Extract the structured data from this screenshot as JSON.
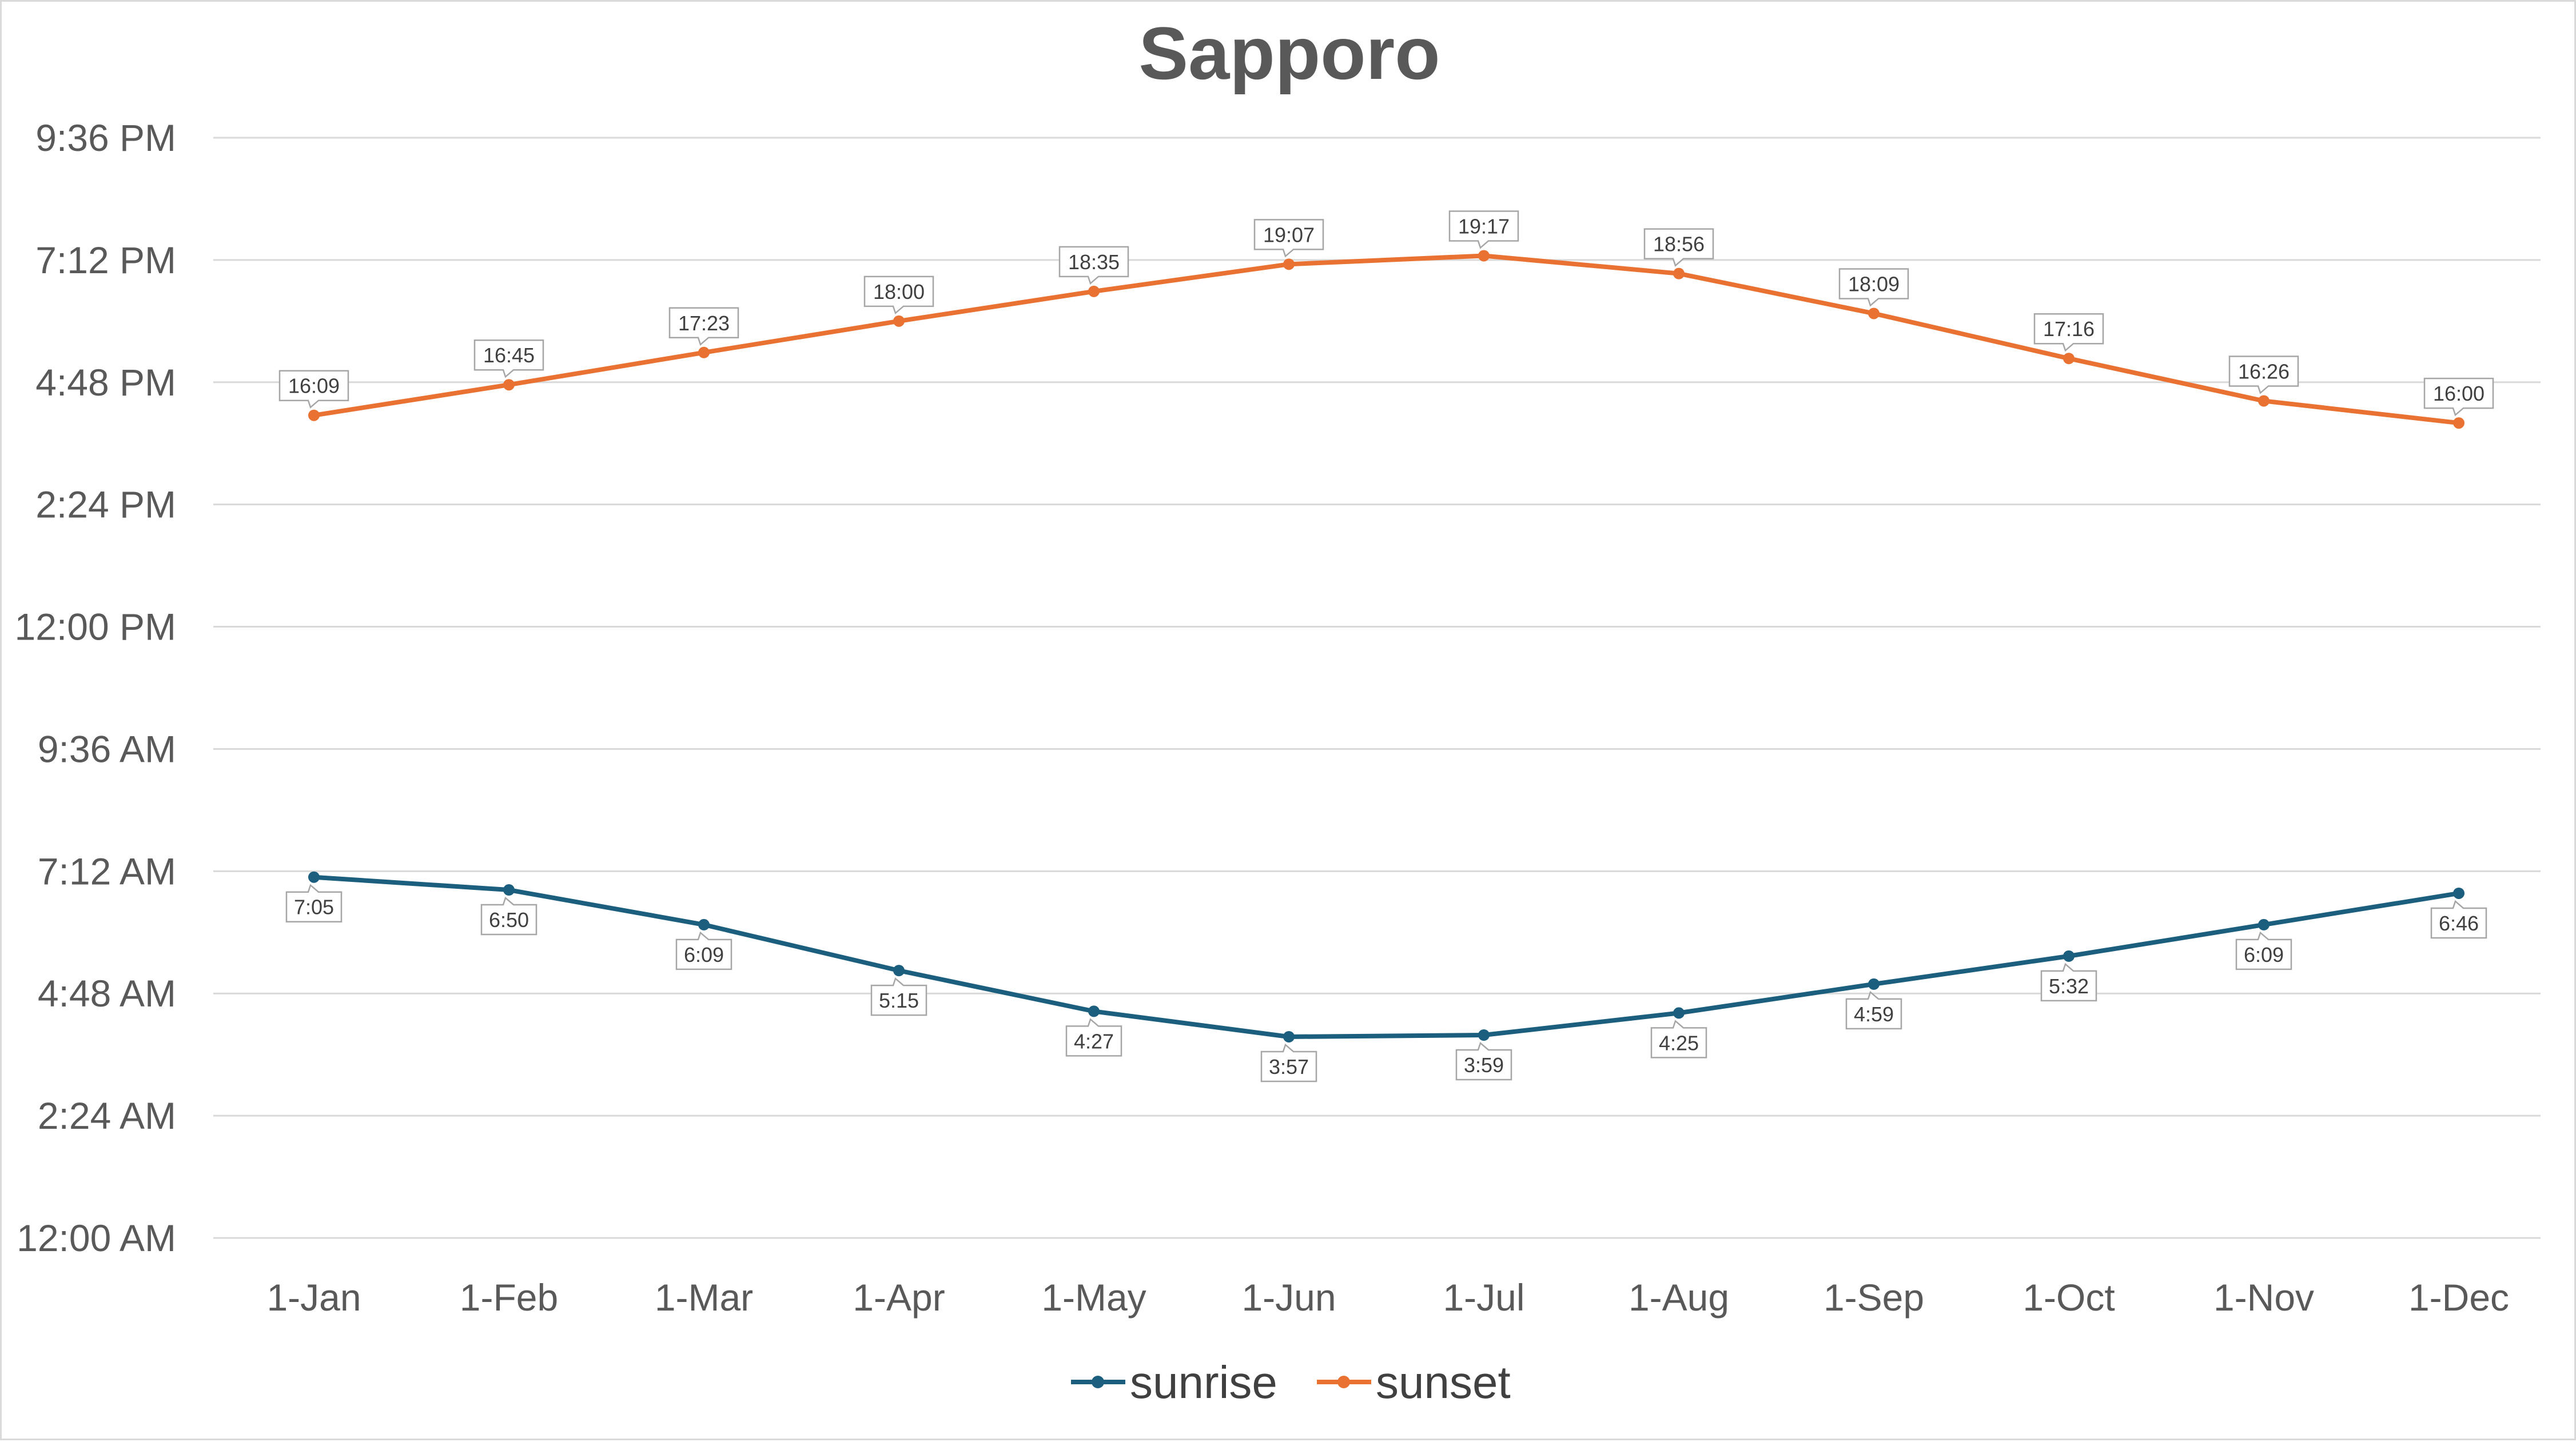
{
  "chart_data": {
    "type": "line",
    "title": "Sapporo",
    "xlabel": "",
    "ylabel": "",
    "categories": [
      "1-Jan",
      "1-Feb",
      "1-Mar",
      "1-Apr",
      "1-May",
      "1-Jun",
      "1-Jul",
      "1-Aug",
      "1-Sep",
      "1-Oct",
      "1-Nov",
      "1-Dec"
    ],
    "y_ticks": [
      "12:00 AM",
      "2:24 AM",
      "4:48 AM",
      "7:12 AM",
      "9:36 AM",
      "12:00 PM",
      "2:24 PM",
      "4:48 PM",
      "7:12 PM",
      "9:36 PM"
    ],
    "ylim": [
      "00:00",
      "21:36"
    ],
    "grid": true,
    "legend_position": "bottom",
    "series": [
      {
        "name": "sunrise",
        "color": "#1b5e7e",
        "label_position": "below",
        "values": [
          "7:05",
          "6:50",
          "6:09",
          "5:15",
          "4:27",
          "3:57",
          "3:59",
          "4:25",
          "4:59",
          "5:32",
          "6:09",
          "6:46"
        ]
      },
      {
        "name": "sunset",
        "color": "#e97132",
        "label_position": "above",
        "values": [
          "16:09",
          "16:45",
          "17:23",
          "18:00",
          "18:35",
          "19:07",
          "19:17",
          "18:56",
          "18:09",
          "17:16",
          "16:26",
          "16:00"
        ]
      }
    ]
  }
}
